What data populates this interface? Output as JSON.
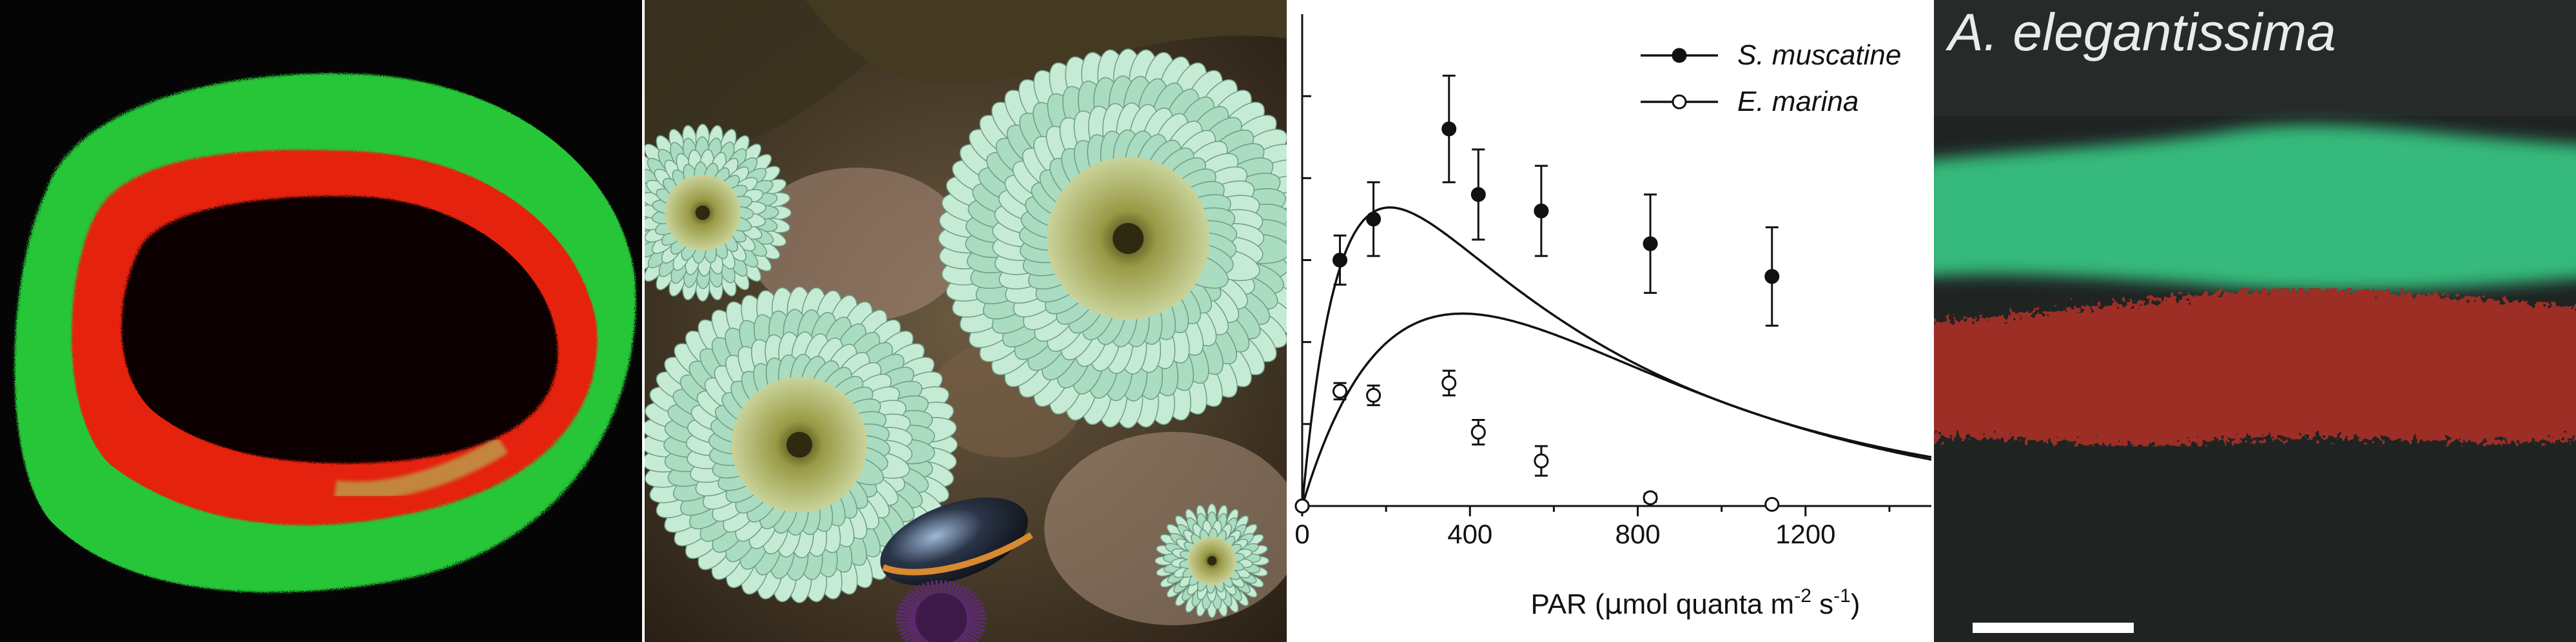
{
  "panels": {
    "a": {
      "subject": "fluorescence-ring-micrograph"
    },
    "b": {
      "subject": "sea-anemones-photo"
    },
    "c": {
      "subject": "photosynthesis-light-curve"
    },
    "d": {
      "title": "A. elegantissima",
      "subject": "tentacle-cross-section-fluorescence"
    }
  },
  "chart_data": {
    "type": "scatter",
    "xlabel": "PAR (µmol quanta m⁻² s⁻¹)",
    "xlabel_main": "PAR (",
    "xlabel_mu": "µ",
    "xlabel_unit": "mol quanta m",
    "xlabel_sup1": "-2",
    "xlabel_s": " s",
    "xlabel_sup2": "-1",
    "xlabel_close": ")",
    "ylabel": "",
    "xlim": [
      0,
      1500
    ],
    "ylim": [
      0,
      6
    ],
    "x_ticks": [
      0,
      400,
      800,
      1200
    ],
    "y_ticks": [
      0,
      1,
      2,
      3,
      4,
      5
    ],
    "legend_position": "top-right",
    "series": [
      {
        "name": "S. muscatine",
        "marker": "filled",
        "x": [
          0,
          90,
          170,
          350,
          420,
          570,
          830,
          1120
        ],
        "y": [
          0,
          3.0,
          3.5,
          4.6,
          3.8,
          3.6,
          3.2,
          2.8
        ],
        "yerr": [
          0,
          0.3,
          0.45,
          0.65,
          0.55,
          0.55,
          0.6,
          0.6
        ],
        "curve": {
          "pmax": 5.8,
          "alpha": 0.055,
          "beta": 0.0088
        }
      },
      {
        "name": "E. marina",
        "marker": "open",
        "x": [
          0,
          90,
          170,
          350,
          420,
          570,
          830,
          1120
        ],
        "y": [
          0,
          1.4,
          1.35,
          1.5,
          0.9,
          0.55,
          0.1,
          0.02
        ],
        "yerr": [
          0,
          0.1,
          0.12,
          0.15,
          0.15,
          0.18,
          0.05,
          0.03
        ],
        "curve": {
          "pmax": 10,
          "alpha": 0.017,
          "beta": 0.0186
        }
      }
    ]
  },
  "colors": {
    "ring_green": "#2ecf3a",
    "ring_red": "#e0210f",
    "anemone_tentacle": "#bfe6cf",
    "anemone_disc": "#8a8f3a",
    "band_green": "#31b37a",
    "band_red": "#a0332c"
  }
}
